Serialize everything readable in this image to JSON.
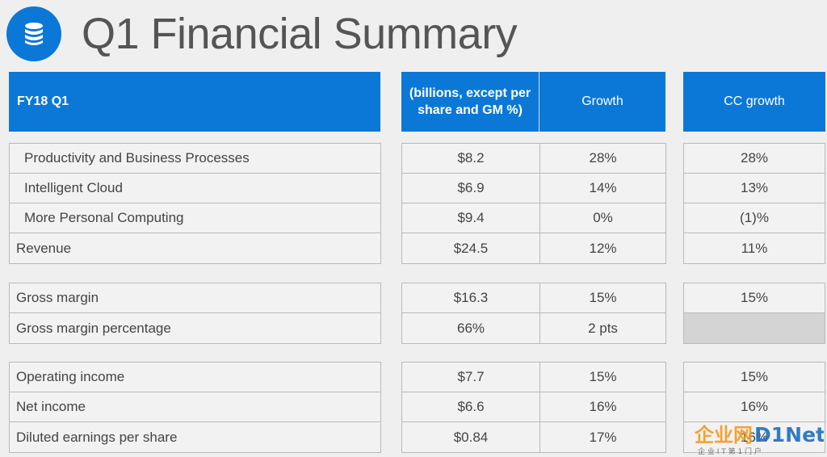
{
  "title": "Q1 Financial Summary",
  "title_icon": "database-icon",
  "accent_color": "#0b78d7",
  "header": {
    "left_label": "FY18 Q1",
    "amount_label": "(billions, except per share and GM %)",
    "growth_label": "Growth",
    "cc_growth_label": "CC growth"
  },
  "groups": [
    {
      "rows": [
        {
          "label": "Productivity and Business Processes",
          "amount": "$8.2",
          "growth": "28%",
          "cc_growth": "28%"
        },
        {
          "label": "Intelligent Cloud",
          "amount": "$6.9",
          "growth": "14%",
          "cc_growth": "13%"
        },
        {
          "label": "More Personal Computing",
          "amount": "$9.4",
          "growth": "0%",
          "cc_growth": "(1)%"
        },
        {
          "label": "Revenue",
          "amount": "$24.5",
          "growth": "12%",
          "cc_growth": "11%"
        }
      ]
    },
    {
      "rows": [
        {
          "label": "Gross margin",
          "amount": "$16.3",
          "growth": "15%",
          "cc_growth": "15%"
        },
        {
          "label": "Gross margin percentage",
          "amount": "66%",
          "growth": "2 pts",
          "cc_growth": ""
        }
      ]
    },
    {
      "rows": [
        {
          "label": "Operating income",
          "amount": "$7.7",
          "growth": "15%",
          "cc_growth": "15%"
        },
        {
          "label": "Net income",
          "amount": "$6.6",
          "growth": "16%",
          "cc_growth": "16%"
        },
        {
          "label": "Diluted earnings per share",
          "amount": "$0.84",
          "growth": "17%",
          "cc_growth": "16%"
        }
      ]
    }
  ],
  "watermark": {
    "brand": "企业网D1Net",
    "tagline": "企 业 I T 第 1 门 户"
  }
}
